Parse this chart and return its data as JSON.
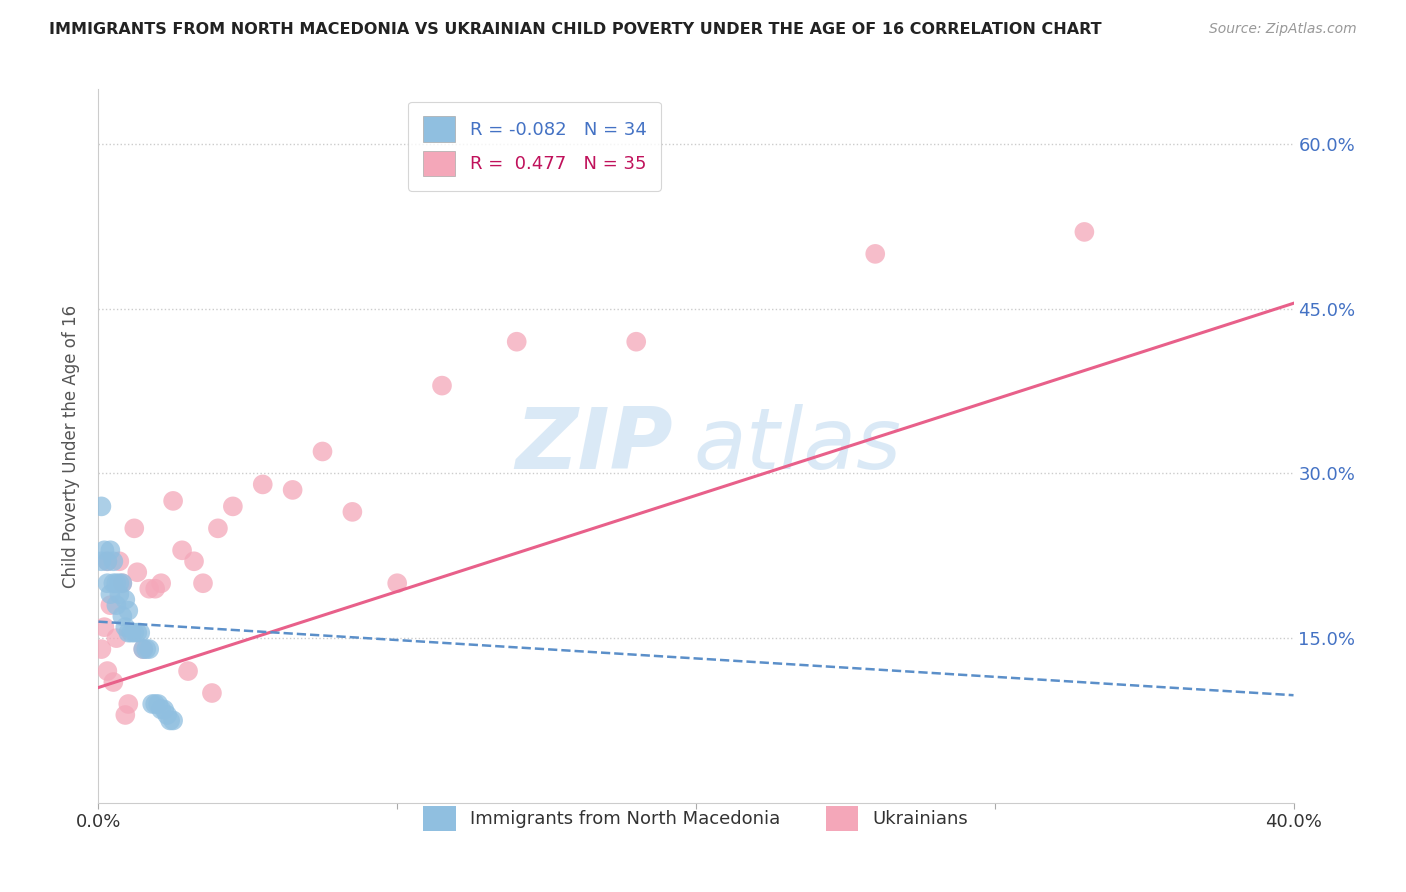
{
  "title": "IMMIGRANTS FROM NORTH MACEDONIA VS UKRAINIAN CHILD POVERTY UNDER THE AGE OF 16 CORRELATION CHART",
  "source": "Source: ZipAtlas.com",
  "ylabel": "Child Poverty Under the Age of 16",
  "ytick_labels": [
    "15.0%",
    "30.0%",
    "45.0%",
    "60.0%"
  ],
  "ytick_values": [
    0.15,
    0.3,
    0.45,
    0.6
  ],
  "xlim": [
    0.0,
    0.4
  ],
  "ylim": [
    0.0,
    0.65
  ],
  "legend_r1": "R = -0.082",
  "legend_n1": "N = 34",
  "legend_r2": "R =  0.477",
  "legend_n2": "N = 35",
  "blue_color": "#90bfe0",
  "pink_color": "#f4a7b9",
  "blue_line_color": "#5b8fc9",
  "pink_line_color": "#e8608a",
  "watermark_zip": "ZIP",
  "watermark_atlas": "atlas",
  "bg_color": "#ffffff",
  "grid_color": "#cccccc",
  "blue_scatter_x": [
    0.001,
    0.001,
    0.002,
    0.003,
    0.003,
    0.004,
    0.004,
    0.005,
    0.005,
    0.006,
    0.006,
    0.007,
    0.007,
    0.008,
    0.008,
    0.009,
    0.009,
    0.01,
    0.01,
    0.011,
    0.012,
    0.013,
    0.014,
    0.015,
    0.016,
    0.017,
    0.018,
    0.019,
    0.02,
    0.021,
    0.022,
    0.023,
    0.024,
    0.025
  ],
  "blue_scatter_y": [
    0.27,
    0.22,
    0.23,
    0.22,
    0.2,
    0.23,
    0.19,
    0.22,
    0.2,
    0.2,
    0.18,
    0.2,
    0.19,
    0.2,
    0.17,
    0.185,
    0.16,
    0.175,
    0.155,
    0.155,
    0.155,
    0.155,
    0.155,
    0.14,
    0.14,
    0.14,
    0.09,
    0.09,
    0.09,
    0.085,
    0.085,
    0.08,
    0.075,
    0.075
  ],
  "pink_scatter_x": [
    0.001,
    0.002,
    0.003,
    0.003,
    0.004,
    0.005,
    0.006,
    0.007,
    0.008,
    0.009,
    0.01,
    0.012,
    0.013,
    0.015,
    0.017,
    0.019,
    0.021,
    0.025,
    0.028,
    0.03,
    0.032,
    0.035,
    0.038,
    0.04,
    0.045,
    0.055,
    0.065,
    0.075,
    0.085,
    0.1,
    0.115,
    0.14,
    0.18,
    0.26,
    0.33
  ],
  "pink_scatter_y": [
    0.14,
    0.16,
    0.12,
    0.22,
    0.18,
    0.11,
    0.15,
    0.22,
    0.2,
    0.08,
    0.09,
    0.25,
    0.21,
    0.14,
    0.195,
    0.195,
    0.2,
    0.275,
    0.23,
    0.12,
    0.22,
    0.2,
    0.1,
    0.25,
    0.27,
    0.29,
    0.285,
    0.32,
    0.265,
    0.2,
    0.38,
    0.42,
    0.42,
    0.5,
    0.52
  ],
  "blue_trend_x0": 0.0,
  "blue_trend_y0": 0.165,
  "blue_trend_x1": 0.4,
  "blue_trend_y1": 0.098,
  "pink_trend_x0": 0.0,
  "pink_trend_y0": 0.105,
  "pink_trend_x1": 0.4,
  "pink_trend_y1": 0.455
}
